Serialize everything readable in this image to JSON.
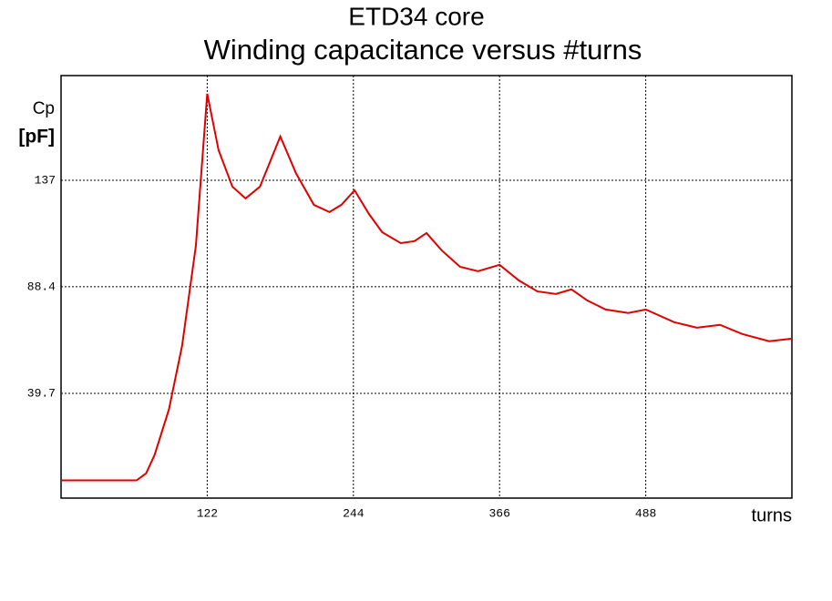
{
  "chart_data": {
    "type": "line",
    "title": "ETD34 core",
    "subtitle": "Winding capacitance versus #turns",
    "y_label_top": "Cp",
    "y_label_unit": "[pF]",
    "x_label": "turns",
    "x": [
      0,
      63,
      71,
      78,
      90,
      101,
      112.5,
      122,
      131.5,
      143,
      154,
      166,
      183,
      196,
      211,
      224,
      234,
      245,
      257,
      268,
      283.5,
      295,
      305,
      317.7,
      333,
      348,
      366,
      382,
      397.5,
      413,
      426,
      439,
      454.5,
      473.5,
      488,
      511.7,
      530.7,
      550,
      568.6,
      591,
      610
    ],
    "series": [
      {
        "name": "Cp",
        "color": "#e00000",
        "values": [
          0,
          0,
          3.2,
          11.5,
          32.3,
          61.4,
          107,
          176.5,
          150.7,
          134.1,
          128.7,
          134.1,
          157,
          140.3,
          125.8,
          122.5,
          125.8,
          132.4,
          121.6,
          113.3,
          108.3,
          109.2,
          112.9,
          105,
          97.5,
          95.5,
          98.4,
          91.3,
          86.3,
          85.1,
          87.2,
          82.2,
          78,
          76.4,
          78,
          72.2,
          69.7,
          71,
          66.8,
          63.5,
          64.7
        ]
      }
    ],
    "xlim": [
      0,
      610
    ],
    "ylim": [
      -8.1,
      184.8
    ],
    "xticks": [
      122,
      244,
      366,
      488
    ],
    "yticks": [
      39.7,
      88.4,
      137
    ],
    "grid": true
  }
}
